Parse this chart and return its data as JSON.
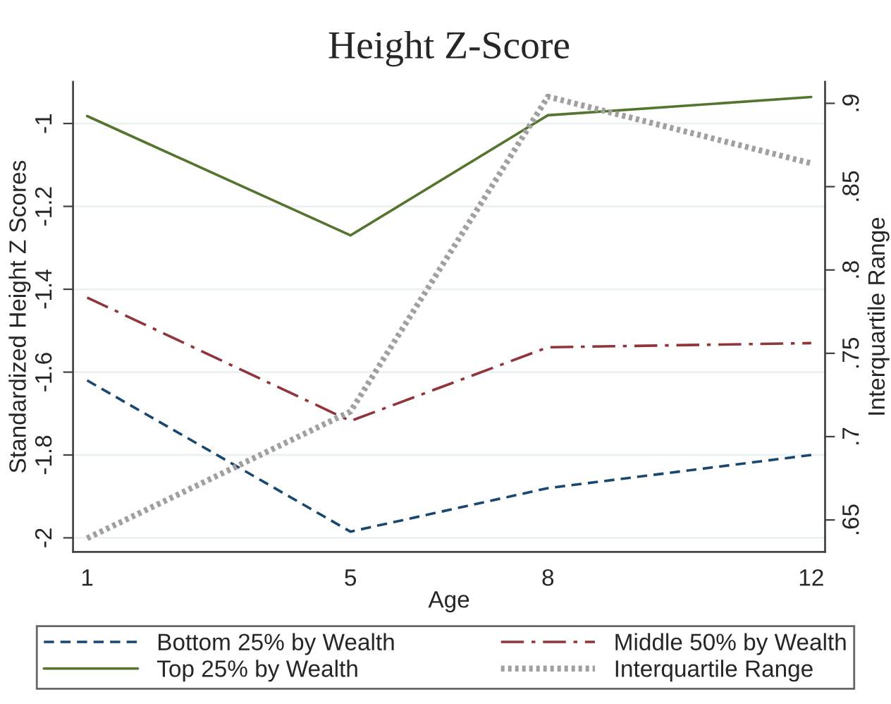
{
  "chart_data": {
    "type": "line",
    "title": "Height Z-Score",
    "xlabel": "Age",
    "ylabel": "Standardized Height Z Scores",
    "y2label": "Interquartile Range",
    "x": [
      1,
      5,
      8,
      12
    ],
    "series": [
      {
        "name": "Bottom 25% by Wealth",
        "color": "#1a476f",
        "line_style": "dashed",
        "values": [
          -1.62,
          -1.985,
          -1.88,
          -1.8
        ]
      },
      {
        "name": "Middle 50% by Wealth",
        "color": "#90353b",
        "line_style": "dashdot",
        "values": [
          -1.42,
          -1.718,
          -1.54,
          -1.53
        ]
      },
      {
        "name": "Top 25% by Wealth",
        "color": "#55752f",
        "line_style": "solid",
        "values": [
          -0.982,
          -1.27,
          -0.98,
          -0.936
        ]
      },
      {
        "name": "Interquartile Range",
        "color": "#a0a0a0",
        "line_style": "dotted",
        "axis": "y2",
        "values": [
          0.639,
          0.715,
          0.904,
          0.864
        ]
      }
    ],
    "xlim": [
      0.786,
      12.21
    ],
    "xticks": [
      1,
      5,
      8,
      12
    ],
    "ylim": [
      -2.034,
      -0.899
    ],
    "yticks": [
      -2,
      -1.8,
      -1.6,
      -1.4,
      -1.2,
      -1
    ],
    "y2lim": [
      0.6308,
      0.913
    ],
    "y2ticks": [
      {
        "value": 0.65,
        "label": ".65"
      },
      {
        "value": 0.7,
        "label": ".7"
      },
      {
        "value": 0.75,
        "label": ".75"
      },
      {
        "value": 0.8,
        "label": ".8"
      },
      {
        "value": 0.85,
        "label": ".85"
      },
      {
        "value": 0.9,
        "label": ".9"
      }
    ],
    "grid": "y",
    "legend": "bottom"
  }
}
